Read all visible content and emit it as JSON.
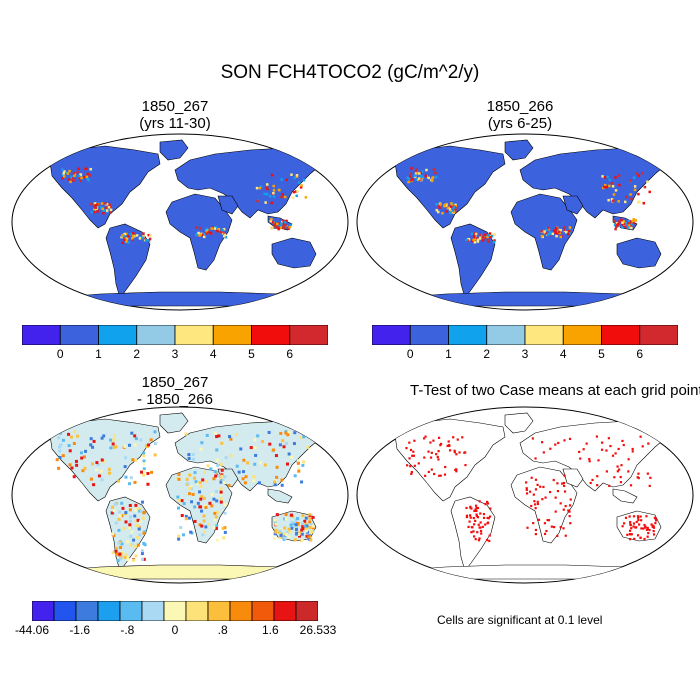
{
  "main_title": "SON FCH4TOCO2 (gC/m^2/y)",
  "panels": [
    {
      "title_line1": "1850_267",
      "title_line2": "(yrs 11-30)"
    },
    {
      "title_line1": "1850_266",
      "title_line2": "(yrs 6-25)"
    },
    {
      "title_line1": "1850_267",
      "title_line2": "- 1850_266"
    },
    {
      "title_line1": "T-Test of two Case means at each grid point",
      "title_line2": ""
    }
  ],
  "colorbar_abs": {
    "colors": [
      "#4422ee",
      "#3d62de",
      "#11a2ee",
      "#93cbe6",
      "#fde77e",
      "#f9a300",
      "#f20d0d",
      "#d2292f"
    ],
    "labels": [
      "0",
      "1",
      "2",
      "3",
      "4",
      "5",
      "6"
    ]
  },
  "colorbar_diff": {
    "colors": [
      "#4422ee",
      "#2255ee",
      "#3d7cde",
      "#1c9fee",
      "#5abbf0",
      "#a9d9f3",
      "#fbf7b4",
      "#fde27a",
      "#fbbf3c",
      "#f98b0c",
      "#f05a0a",
      "#e81414",
      "#cc2a2a"
    ],
    "labels": [
      "-44.06",
      "-1.6",
      "-.8",
      "0",
      ".8",
      "1.6",
      "26.533"
    ]
  },
  "significance_note": "Cells are significant at 0.1 level",
  "map_colors": {
    "ocean": "#ffffff",
    "land_abs": "#3d62de",
    "land_diff": "#d3ebef",
    "diff_neutral": "#fbf7b4",
    "significant": "#f20d0d",
    "coast": "#000000"
  }
}
